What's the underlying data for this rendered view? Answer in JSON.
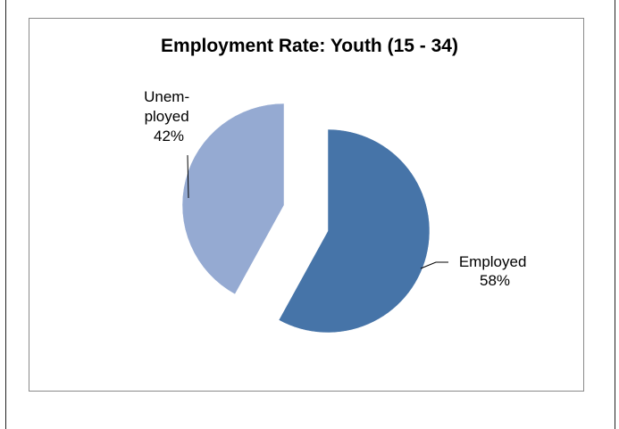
{
  "chart_data": {
    "type": "pie",
    "title": "Employment Rate: Youth (15 - 34)",
    "slices": [
      {
        "label_lines": [
          "Employed",
          "58%"
        ],
        "value": 58,
        "color": "#4674a8"
      },
      {
        "label_lines": [
          "Unem-",
          "ployed",
          "42%"
        ],
        "value": 42,
        "color": "#95aad2"
      }
    ],
    "exploded": true,
    "legend": "none",
    "data_labels": "outside with leader lines"
  }
}
